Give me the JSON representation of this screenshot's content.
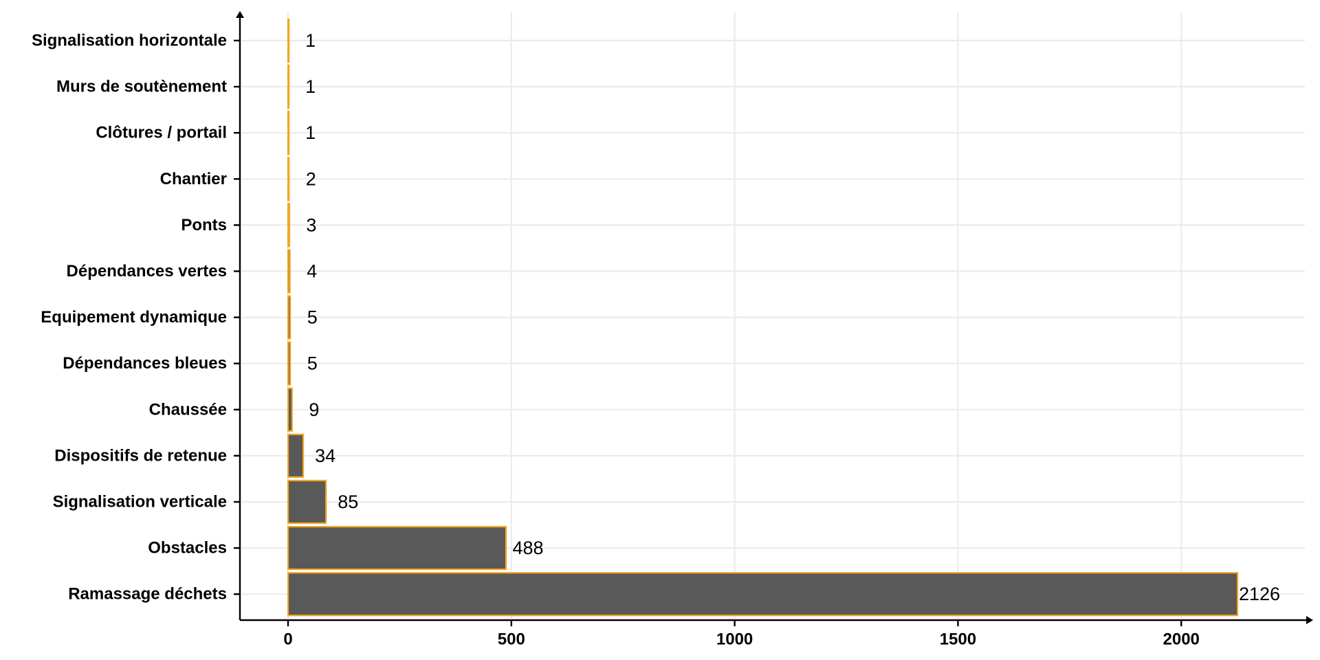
{
  "chart_data": {
    "type": "bar",
    "orientation": "horizontal",
    "title": "",
    "xlabel": "",
    "ylabel": "",
    "categories": [
      "Signalisation horizontale",
      "Murs de soutènement",
      "Clôtures / portail",
      "Chantier",
      "Ponts",
      "Dépendances vertes",
      "Equipement dynamique",
      "Dépendances bleues",
      "Chaussée",
      "Dispositifs de retenue",
      "Signalisation verticale",
      "Obstacles",
      "Ramassage déchets"
    ],
    "values": [
      1,
      1,
      1,
      2,
      3,
      4,
      5,
      5,
      9,
      34,
      85,
      488,
      2126
    ],
    "xlim": [
      0,
      2300
    ],
    "xticks": [
      0,
      500,
      1000,
      1500,
      2000
    ],
    "grid": true,
    "bar_fill_color": "#595959",
    "bar_edge_color": "#f5a623",
    "gridline_color": "#ebebeb",
    "axis_color": "#000000"
  }
}
